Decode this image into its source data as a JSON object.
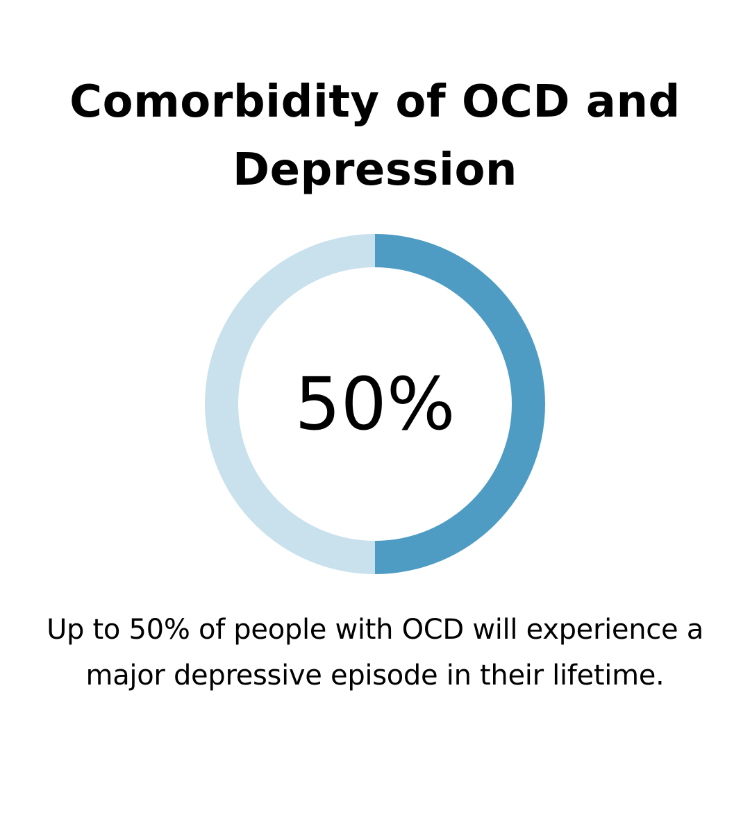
{
  "title": "Comorbidity of OCD and Depression",
  "caption": "Up to 50% of people with OCD will experience a major depressive episode in their lifetime.",
  "chart_data": {
    "type": "pie",
    "style": "donut",
    "center_label": "50%",
    "slices": [
      {
        "value": 50,
        "color": "#4e9cc3"
      },
      {
        "value": 50,
        "color": "#c9e1ed"
      }
    ]
  }
}
